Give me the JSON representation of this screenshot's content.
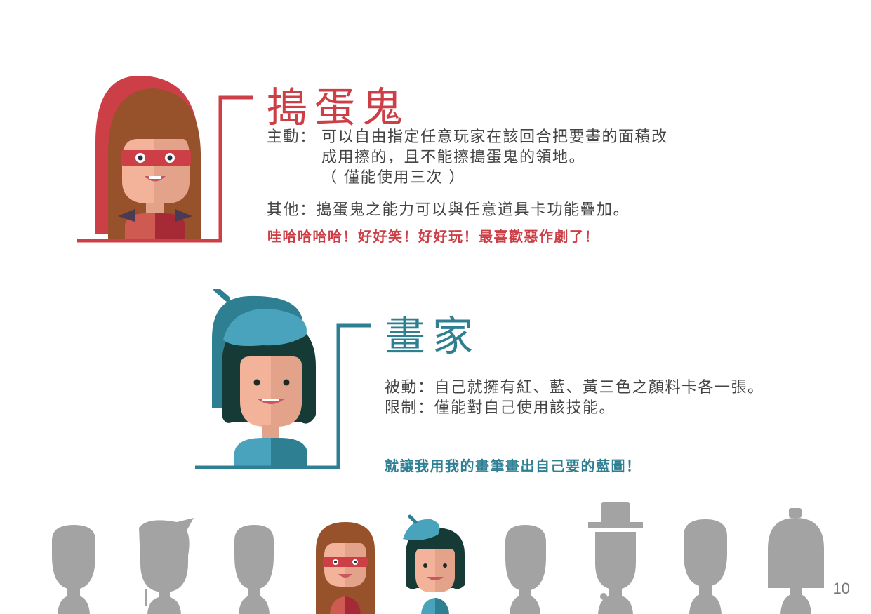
{
  "trickster": {
    "title": "搗蛋鬼",
    "active_label": "主動：",
    "active_line1": "可以自由指定任意玩家在該回合把要畫的面積改",
    "active_line2": "成用擦的，且不能擦搗蛋鬼的領地。",
    "active_line3": "（ 僅能使用三次 ）",
    "other": "其他：搗蛋鬼之能力可以與任意道具卡功能疊加。",
    "quote": "哇哈哈哈哈！好好笑！好好玩！最喜歡惡作劇了！"
  },
  "painter": {
    "title": "畫家",
    "passive": "被動：自己就擁有紅、藍、黃三色之顏料卡各一張。",
    "limit": "限制：僅能對自己使用該技能。",
    "quote": "就讓我用我的畫筆畫出自己要的藍圖！"
  },
  "page_number": "10",
  "colors": {
    "trickster_red": "#cc3f47",
    "painter_teal": "#2f7f93",
    "silhouette_gray": "#a3a3a3"
  }
}
